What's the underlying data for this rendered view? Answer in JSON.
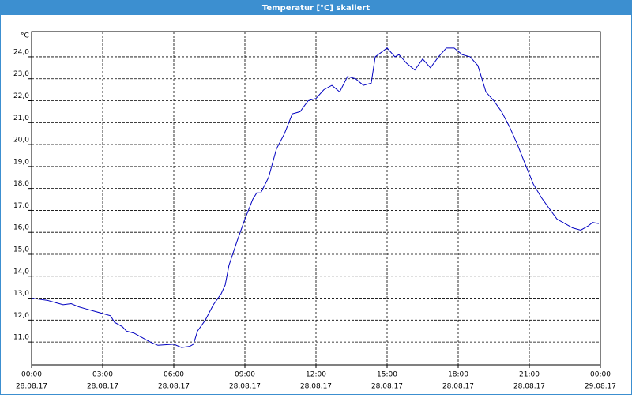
{
  "chart_data": {
    "type": "line",
    "title": "Temperatur [°C] skaliert",
    "y_label": "°C",
    "x": [
      0,
      0.33,
      0.67,
      1,
      1.33,
      1.67,
      2,
      2.33,
      2.67,
      3,
      3.33,
      3.5,
      3.83,
      4,
      4.33,
      4.67,
      5,
      5.33,
      6,
      6.33,
      6.67,
      6.83,
      7,
      7.33,
      7.67,
      8,
      8.17,
      8.33,
      8.67,
      9,
      9.33,
      9.5,
      9.67,
      10,
      10.33,
      10.67,
      11,
      11.33,
      11.67,
      12,
      12.33,
      12.67,
      13,
      13.33,
      13.67,
      14,
      14.33,
      14.5,
      15,
      15.33,
      15.5,
      15.83,
      16.17,
      16.5,
      16.83,
      17.17,
      17.5,
      17.83,
      18.17,
      18.5,
      18.83,
      19.17,
      19.5,
      19.83,
      20.17,
      20.5,
      20.83,
      21.17,
      21.5,
      21.83,
      22.17,
      22.5,
      22.83,
      23.17,
      23.5,
      23.67,
      23.93
    ],
    "series": [
      {
        "color": "#0000c0",
        "values": [
          13.0,
          12.95,
          12.9,
          12.8,
          12.7,
          12.75,
          12.6,
          12.5,
          12.4,
          12.3,
          12.2,
          11.9,
          11.7,
          11.5,
          11.4,
          11.2,
          11.0,
          10.85,
          10.9,
          10.75,
          10.8,
          10.9,
          11.5,
          12.0,
          12.7,
          13.2,
          13.6,
          14.5,
          15.6,
          16.6,
          17.5,
          17.8,
          17.8,
          18.5,
          19.8,
          20.5,
          21.4,
          21.5,
          22.0,
          22.1,
          22.5,
          22.7,
          22.4,
          23.1,
          23.0,
          22.7,
          22.8,
          24.0,
          24.4,
          24.0,
          24.1,
          23.7,
          23.4,
          23.9,
          23.5,
          24.0,
          24.4,
          24.4,
          24.1,
          24.0,
          23.6,
          22.4,
          22.0,
          21.5,
          20.8,
          20.0,
          19.1,
          18.2,
          17.6,
          17.1,
          16.6,
          16.4,
          16.2,
          16.1,
          16.3,
          16.45,
          16.4
        ]
      }
    ],
    "xlim": [
      0,
      24
    ],
    "xticks": [
      {
        "value": 0,
        "label": "00:00",
        "date": "28.08.17"
      },
      {
        "value": 3,
        "label": "03:00",
        "date": "28.08.17"
      },
      {
        "value": 6,
        "label": "06:00",
        "date": "28.08.17"
      },
      {
        "value": 9,
        "label": "09:00",
        "date": "28.08.17"
      },
      {
        "value": 12,
        "label": "12:00",
        "date": "28.08.17"
      },
      {
        "value": 15,
        "label": "15:00",
        "date": "28.08.17"
      },
      {
        "value": 18,
        "label": "18:00",
        "date": "28.08.17"
      },
      {
        "value": 21,
        "label": "21:00",
        "date": "28.08.17"
      },
      {
        "value": 24,
        "label": "00:00",
        "date": "29.08.17"
      }
    ],
    "ylim": [
      9.96,
      25.15
    ],
    "yticks": [
      {
        "value": 11,
        "label": "11,0"
      },
      {
        "value": 12,
        "label": "12,0"
      },
      {
        "value": 13,
        "label": "13,0"
      },
      {
        "value": 14,
        "label": "14,0"
      },
      {
        "value": 15,
        "label": "15,0"
      },
      {
        "value": 16,
        "label": "16,0"
      },
      {
        "value": 17,
        "label": "17,0"
      },
      {
        "value": 18,
        "label": "18,0"
      },
      {
        "value": 19,
        "label": "19,0"
      },
      {
        "value": 20,
        "label": "20,0"
      },
      {
        "value": 21,
        "label": "21,0"
      },
      {
        "value": 22,
        "label": "22,0"
      },
      {
        "value": 23,
        "label": "23,0"
      },
      {
        "value": 24,
        "label": "24,0"
      }
    ],
    "grid": true
  }
}
